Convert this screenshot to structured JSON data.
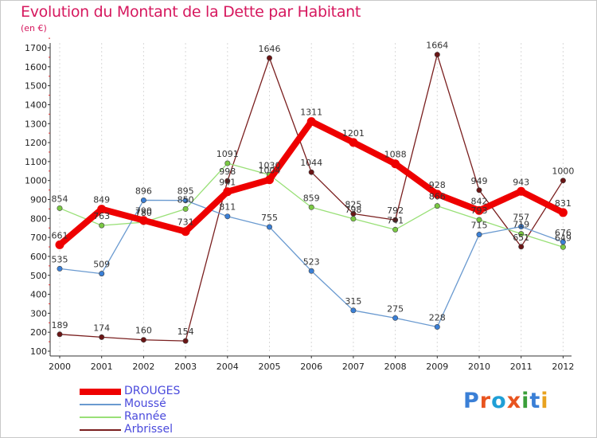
{
  "title": "Evolution du Montant de la Dette par Habitant",
  "unit": "(en €)",
  "logo": {
    "text": "Proxiti",
    "letter_colors": [
      "#3a7fd6",
      "#e8541f",
      "#1f9fd6",
      "#e8541f",
      "#3a9f3a",
      "#3a7fd6",
      "#e8a21f"
    ]
  },
  "chart_data": {
    "type": "line",
    "title": "Evolution du Montant de la Dette par Habitant",
    "ylabel": "(en €)",
    "x": [
      "2000",
      "2001",
      "2002",
      "2003",
      "2004",
      "2005",
      "2006",
      "2007",
      "2008",
      "2009",
      "2010",
      "2011",
      "2012"
    ],
    "yticks": [
      100,
      200,
      300,
      400,
      500,
      600,
      700,
      800,
      900,
      1000,
      1100,
      1200,
      1300,
      1400,
      1500,
      1600,
      1700
    ],
    "ylim": [
      100,
      1700
    ],
    "grid": "vertical-dashed",
    "legend_position": "bottom-left",
    "series": [
      {
        "name": "DROUGES",
        "color": "#ee0000",
        "values": [
          661,
          849,
          790,
          731,
          941,
          1004,
          1311,
          1201,
          1088,
          928,
          842,
          943,
          831
        ]
      },
      {
        "name": "Moussé",
        "color": "#6a9ad0",
        "values": [
          535,
          509,
          896,
          895,
          811,
          755,
          523,
          315,
          275,
          228,
          715,
          757,
          676
        ]
      },
      {
        "name": "Rannée",
        "color": "#99e077",
        "values": [
          854,
          763,
          780,
          850,
          1091,
          1030,
          859,
          798,
          741,
          866,
          793,
          719,
          649
        ]
      },
      {
        "name": "Arbrissel",
        "color": "#7a1f1f",
        "values": [
          189,
          174,
          160,
          154,
          998,
          1646,
          1044,
          825,
          792,
          1664,
          949,
          651,
          1000
        ]
      }
    ]
  }
}
